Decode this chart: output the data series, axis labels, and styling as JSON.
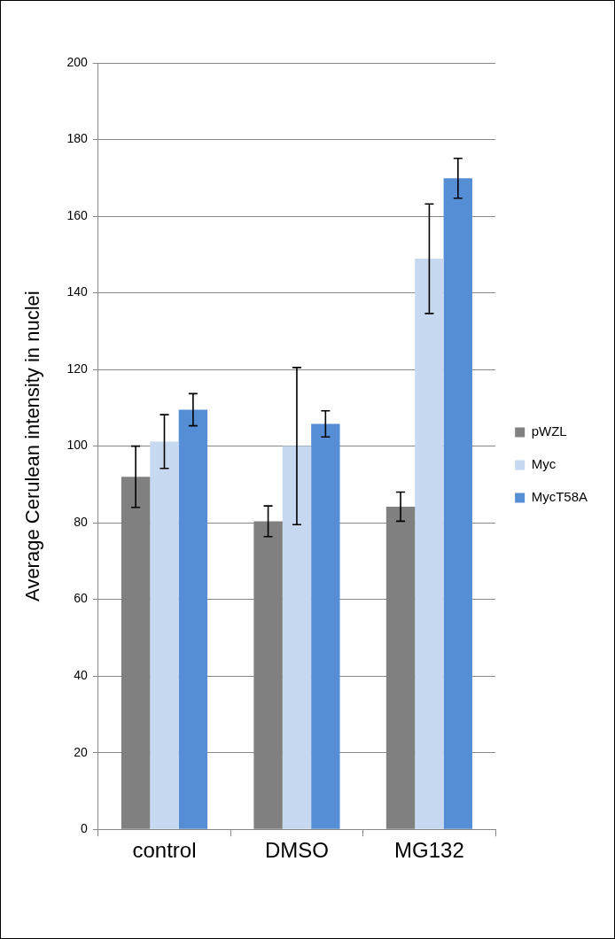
{
  "chart_data": {
    "type": "bar",
    "ylabel": "Average Cerulean intensity in nuclei",
    "categories": [
      "control",
      "DMSO",
      "MG132"
    ],
    "series": [
      {
        "name": "pWZL",
        "color": "#808080",
        "values": [
          92,
          80.4,
          84.2
        ],
        "errors": [
          8,
          4,
          3.8
        ]
      },
      {
        "name": "Myc",
        "color": "#c6d9f1",
        "values": [
          101.2,
          100,
          148.9
        ],
        "errors": [
          7,
          20.5,
          14.3
        ]
      },
      {
        "name": "MycT58A",
        "color": "#558ed5",
        "values": [
          109.5,
          105.8,
          169.9
        ],
        "errors": [
          4.2,
          3.4,
          5.2
        ]
      }
    ],
    "ylim": [
      0,
      200
    ],
    "yticks": [
      0,
      20,
      40,
      60,
      80,
      100,
      120,
      140,
      160,
      180,
      200
    ],
    "grid": "y",
    "legend": "right"
  }
}
